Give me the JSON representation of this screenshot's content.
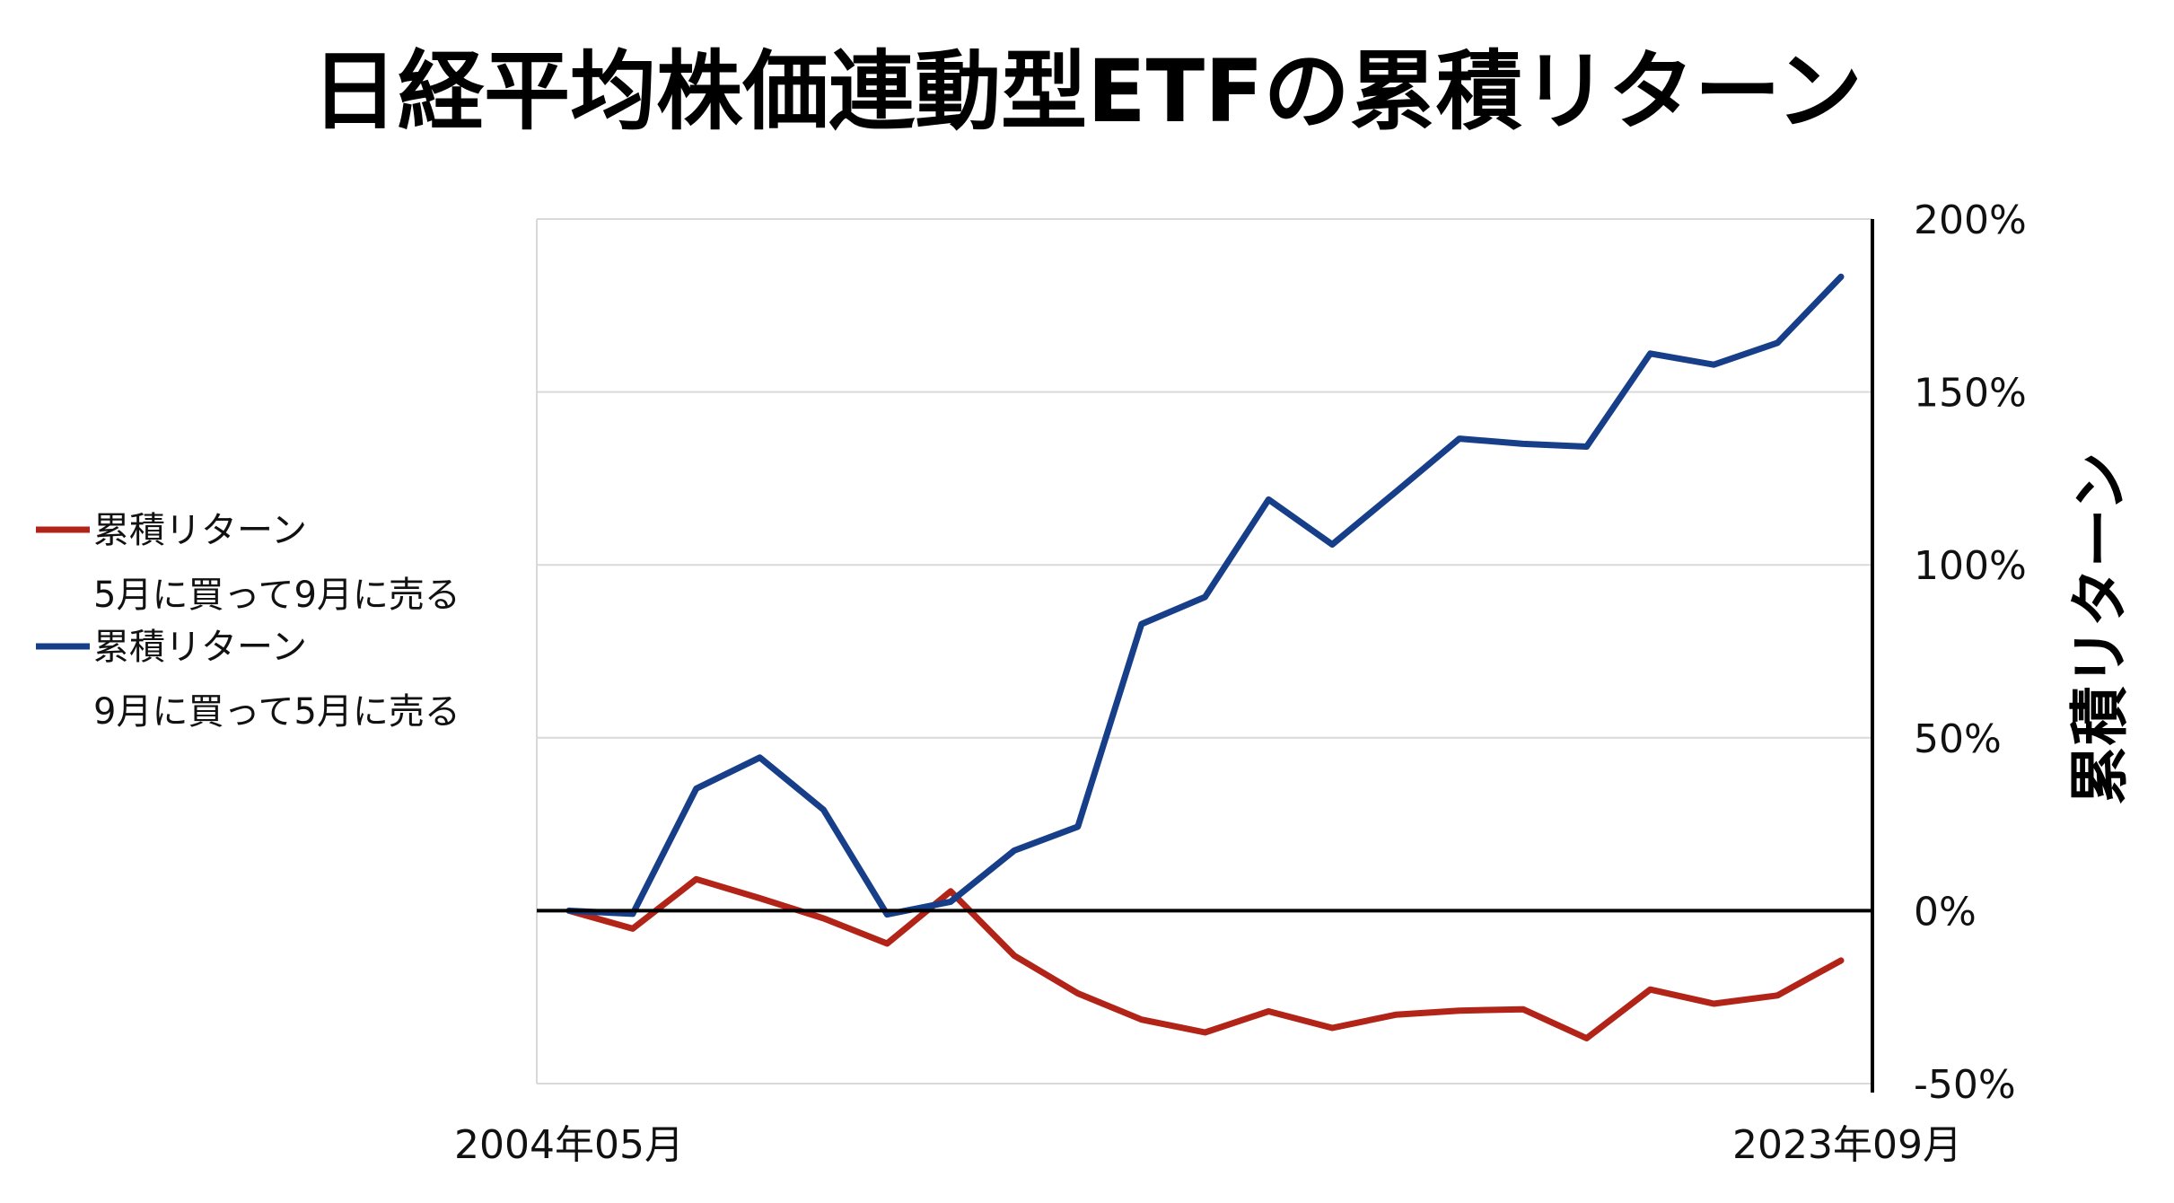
{
  "chart_data": {
    "type": "line",
    "title": "日経平均株価連動型ETFの累積リターン",
    "xlabel": "",
    "ylabel": "累積リターン",
    "y_axis_side": "right",
    "ylim": [
      -50,
      200
    ],
    "y_ticks": [
      -50,
      0,
      50,
      100,
      150,
      200
    ],
    "y_tick_labels": [
      "-50%",
      "0%",
      "50%",
      "100%",
      "150%",
      "200%"
    ],
    "x_tick_labels": [
      "2004年05月",
      "2023年09月"
    ],
    "grid": true,
    "legend_position": "left",
    "series": [
      {
        "name": "累積リターン",
        "subtitle": "5月に買って9月に売る",
        "color": "#B22418",
        "values": [
          0,
          -5.2,
          9.1,
          3.6,
          -2.2,
          -9.5,
          5.6,
          -13.0,
          -23.9,
          -31.5,
          -35.2,
          -29.1,
          -33.9,
          -30.1,
          -28.9,
          -28.5,
          -36.9,
          -22.8,
          -26.9,
          -24.5,
          -14.4
        ]
      },
      {
        "name": "累積リターン",
        "subtitle": "9月に買って5月に売る",
        "color": "#173E88",
        "values": [
          0,
          -0.9,
          35.3,
          44.3,
          29.2,
          -1.1,
          2.6,
          17.4,
          24.3,
          82.9,
          90.7,
          118.9,
          105.9,
          121.1,
          136.5,
          135.0,
          134.2,
          161.1,
          157.9,
          164.2,
          183.3
        ]
      }
    ]
  }
}
